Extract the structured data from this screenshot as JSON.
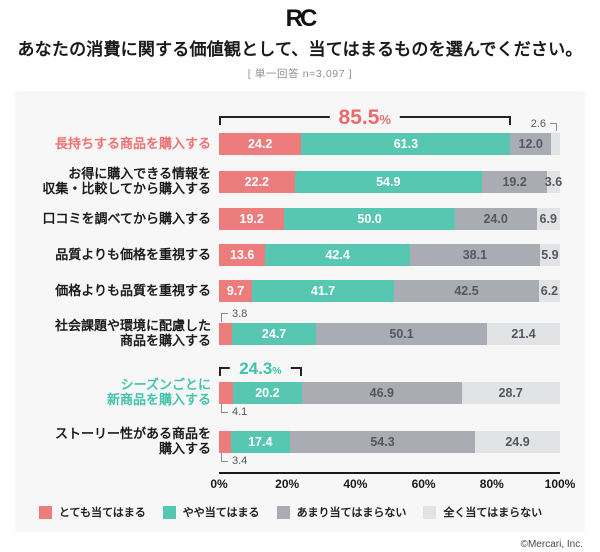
{
  "header": {
    "logo": "RC",
    "title": "あなたの消費に関する価値観として、当てはまるものを選んでください。",
    "subtitle": "[ 単一回答 n=3,097 ]"
  },
  "footer": {
    "copyright": "©Mercari, Inc."
  },
  "colors": {
    "very": "#ED7C7C",
    "somewhat": "#58C7B2",
    "not_much": "#A9ADB3",
    "not_at_all": "#E2E3E5",
    "highlight_red": "#EB6A6A",
    "highlight_teal": "#3EC3AC",
    "category_red": "#EE7272",
    "category_teal": "#44C4AD"
  },
  "chart_data": {
    "type": "bar",
    "stacked": true,
    "orientation": "horizontal",
    "xlim": [
      0,
      100
    ],
    "x_ticks": [
      "0%",
      "20%",
      "40%",
      "60%",
      "80%",
      "100%"
    ],
    "legend_position": "bottom",
    "legend": [
      {
        "label": "とても当てはまる",
        "color": "#ED7C7C"
      },
      {
        "label": "やや当てはまる",
        "color": "#58C7B2"
      },
      {
        "label": "あまり当てはまらない",
        "color": "#A9ADB3"
      },
      {
        "label": "全く当てはまらない",
        "color": "#E2E3E5"
      }
    ],
    "rows": [
      {
        "category": [
          "長持ちする商品を購入する"
        ],
        "category_color": "#EE7272",
        "values": [
          24.2,
          61.3,
          12.0,
          2.6
        ],
        "display": [
          "24.2",
          "61.3",
          "12.0",
          "2.6"
        ],
        "callout": {
          "segment": 3,
          "position": "above-right"
        },
        "bracket": {
          "value": "85.5",
          "unit": "%",
          "span": 85.5,
          "color": "#EB6A6A"
        }
      },
      {
        "category": [
          "お得に購入できる情報を",
          "収集・比較してから購入する"
        ],
        "values": [
          22.2,
          54.9,
          19.2,
          3.6
        ],
        "display": [
          "22.2",
          "54.9",
          "19.2",
          "3.6"
        ]
      },
      {
        "category": [
          "口コミを調べてから購入する"
        ],
        "values": [
          19.2,
          50.0,
          24.0,
          6.9
        ],
        "display": [
          "19.2",
          "50.0",
          "24.0",
          "6.9"
        ]
      },
      {
        "category": [
          "品質よりも価格を重視する"
        ],
        "values": [
          13.6,
          42.4,
          38.1,
          5.9
        ],
        "display": [
          "13.6",
          "42.4",
          "38.1",
          "5.9"
        ]
      },
      {
        "category": [
          "価格よりも品質を重視する"
        ],
        "values": [
          9.7,
          41.7,
          42.5,
          6.2
        ],
        "display": [
          "9.7",
          "41.7",
          "42.5",
          "6.2"
        ]
      },
      {
        "category": [
          "社会課題や環境に配慮した",
          "商品を購入する"
        ],
        "values": [
          3.8,
          24.7,
          50.1,
          21.4
        ],
        "display": [
          "3.8",
          "24.7",
          "50.1",
          "21.4"
        ],
        "callout": {
          "segment": 0,
          "position": "above-left"
        }
      },
      {
        "category": [
          "シーズンごとに",
          "新商品を購入する"
        ],
        "category_color": "#44C4AD",
        "values": [
          4.1,
          20.2,
          46.9,
          28.7
        ],
        "display": [
          "4.1",
          "20.2",
          "46.9",
          "28.7"
        ],
        "callout": {
          "segment": 0,
          "position": "below-left"
        },
        "bracket": {
          "value": "24.3",
          "unit": "%",
          "span": 24.3,
          "color": "#3EC3AC"
        }
      },
      {
        "category": [
          "ストーリー性がある商品を",
          "購入する"
        ],
        "values": [
          3.4,
          17.4,
          54.3,
          24.9
        ],
        "display": [
          "3.4",
          "17.4",
          "54.3",
          "24.9"
        ],
        "callout": {
          "segment": 0,
          "position": "below-left"
        }
      }
    ]
  }
}
